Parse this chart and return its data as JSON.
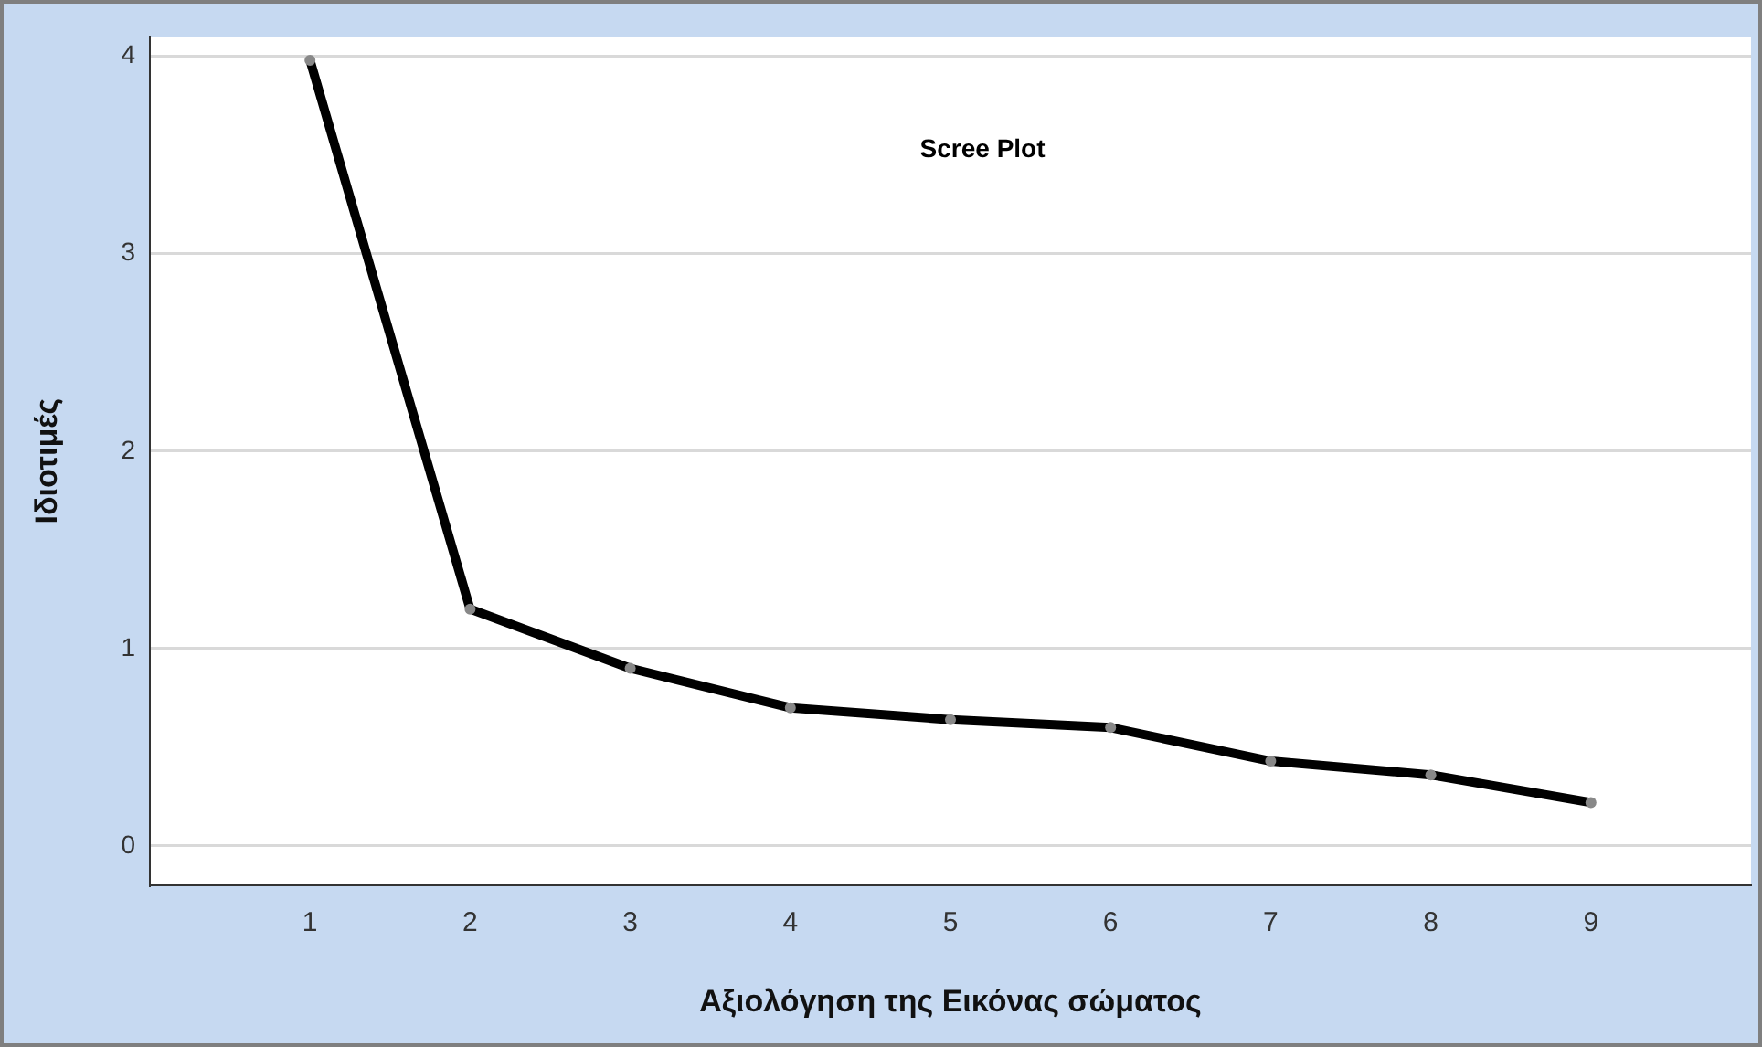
{
  "chart_data": {
    "type": "line",
    "title": "Scree Plot",
    "xlabel": "Αξιολόγηση της Εικόνας σώματος",
    "ylabel": "Ιδιοτιμές",
    "x": [
      1,
      2,
      3,
      4,
      5,
      6,
      7,
      8,
      9
    ],
    "series": [
      {
        "color": "#000000",
        "values": [
          3.98,
          1.2,
          0.9,
          0.7,
          0.64,
          0.6,
          0.43,
          0.36,
          0.22
        ]
      }
    ],
    "xlim": [
      0,
      10
    ],
    "xticks": [
      1,
      2,
      3,
      4,
      5,
      6,
      7,
      8,
      9
    ],
    "ylim": [
      -0.2,
      4.1
    ],
    "yticks": [
      0,
      1,
      2,
      3,
      4
    ],
    "grid": "y",
    "legend": false,
    "marker": "circle",
    "line_style": "solid"
  }
}
